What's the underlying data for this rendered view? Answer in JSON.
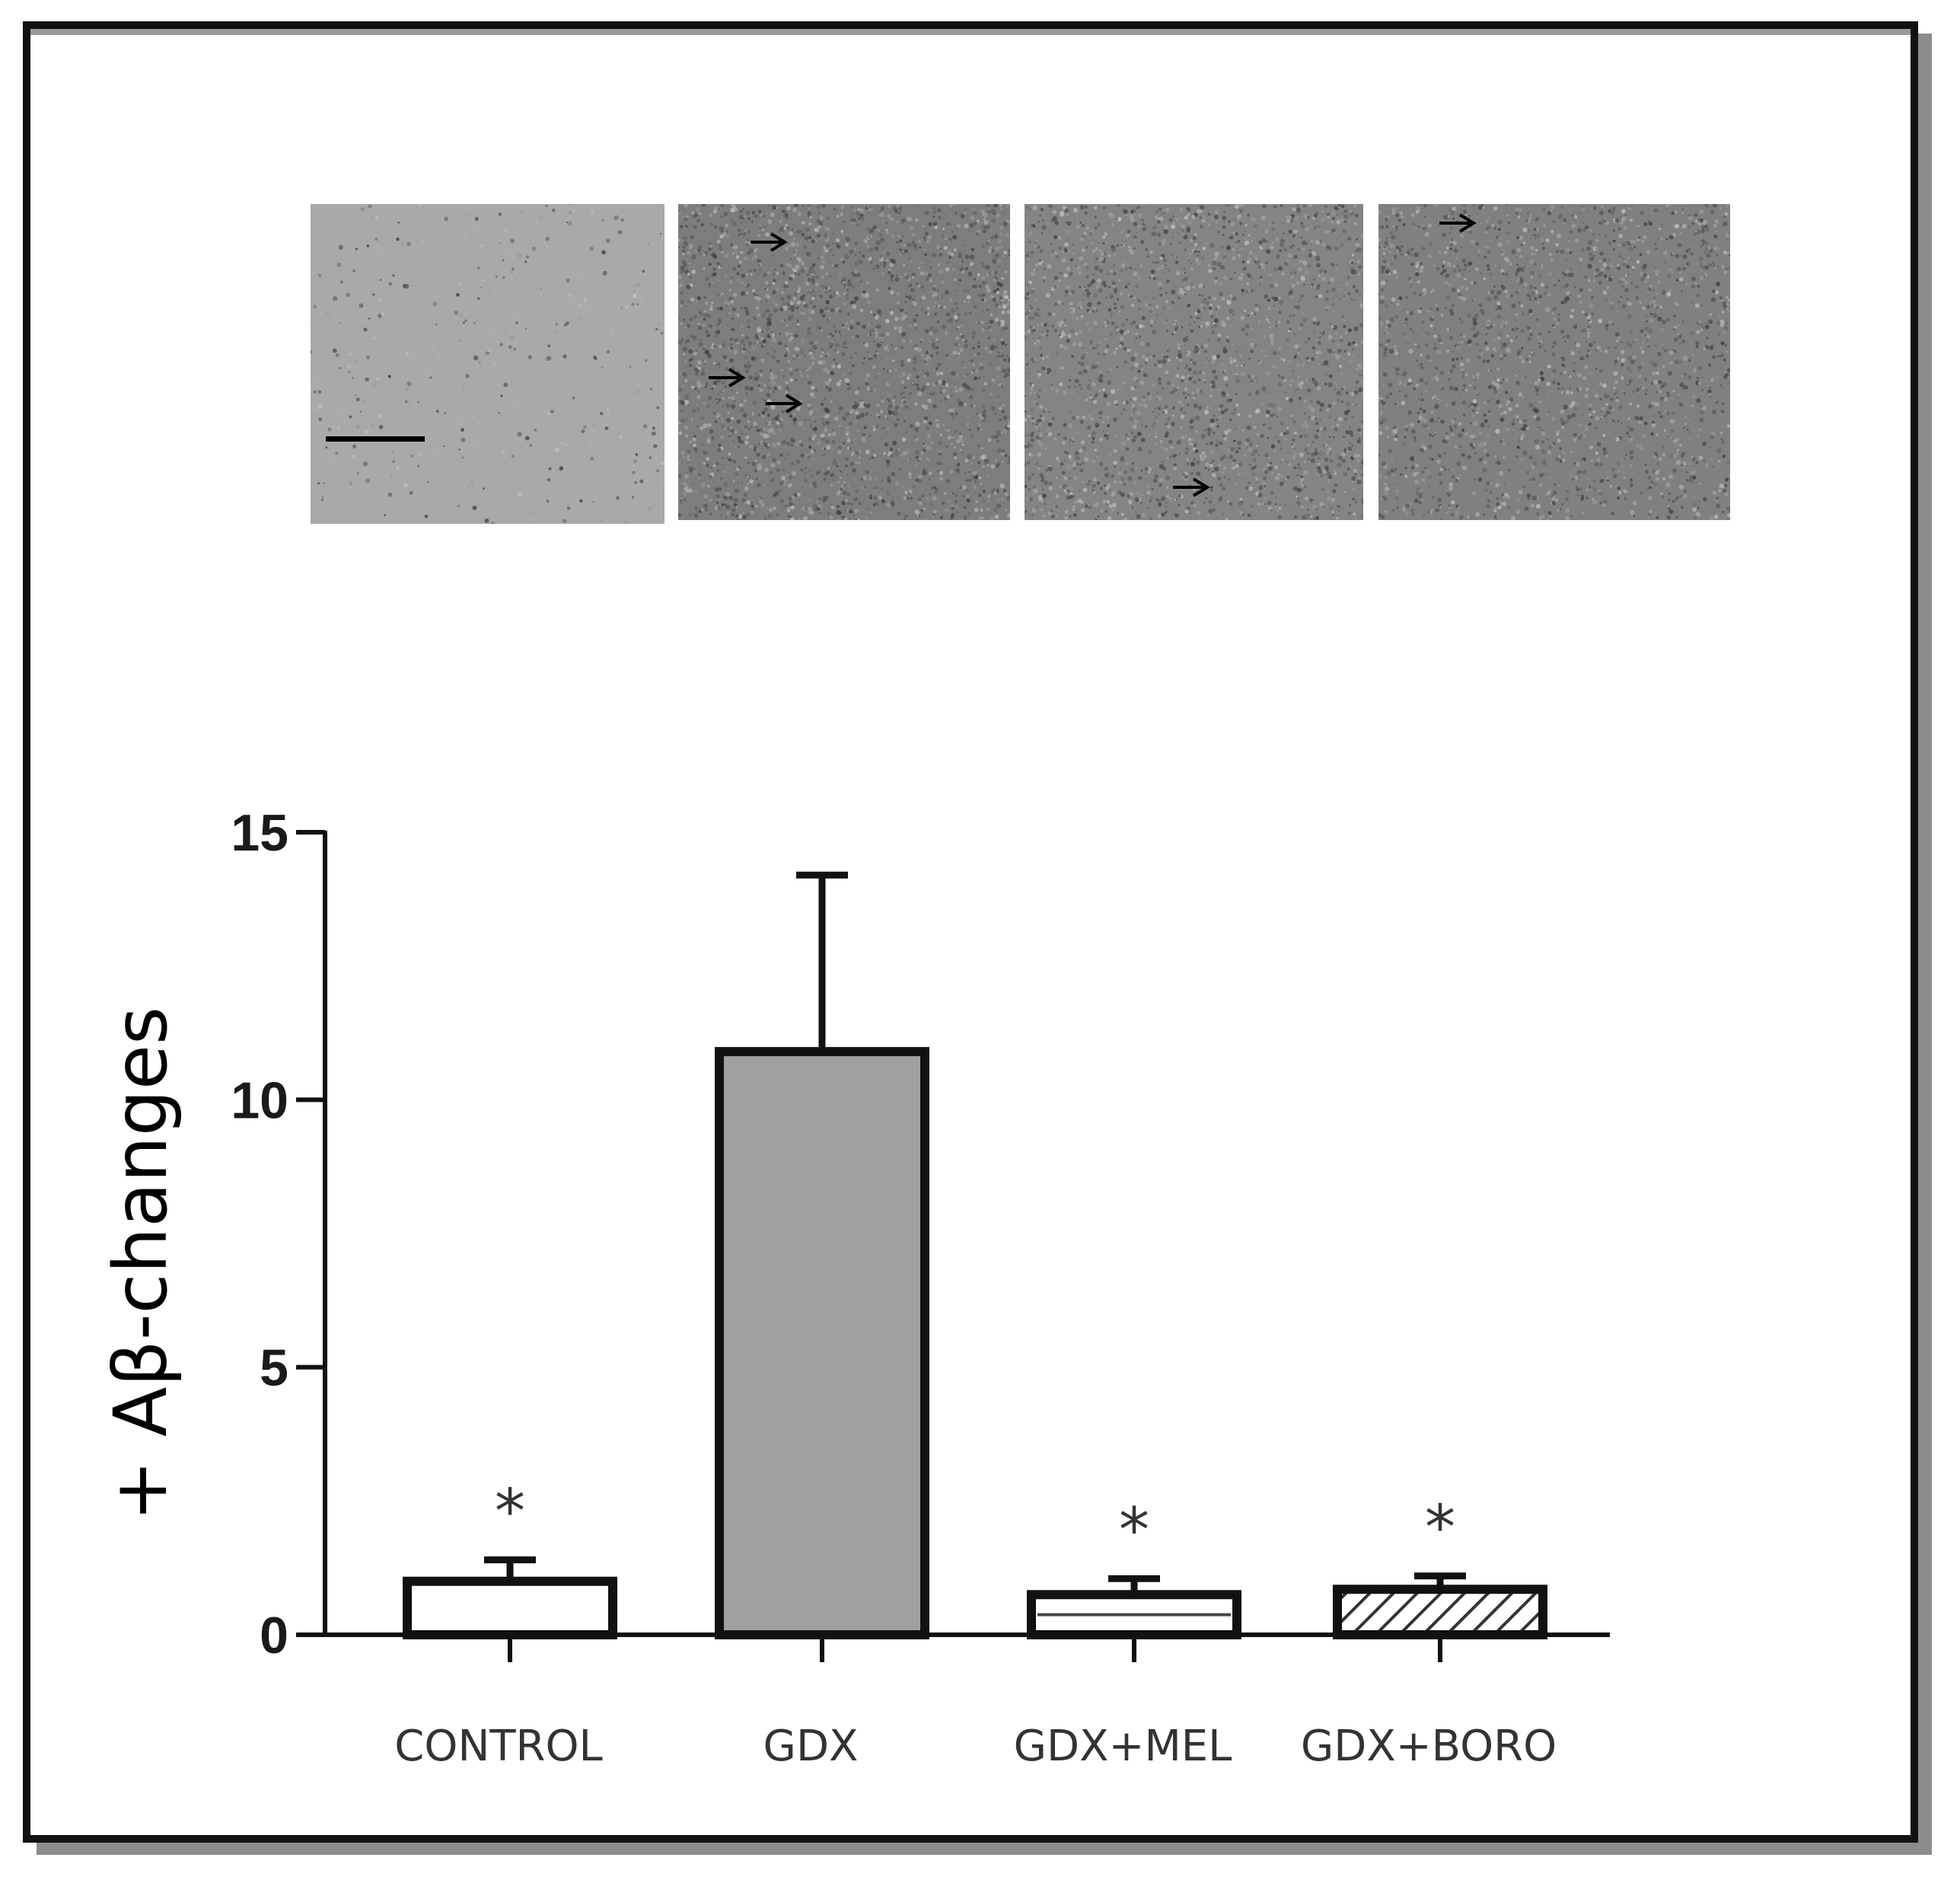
{
  "panels": [
    {
      "name": "control",
      "background": "#a9a9a9",
      "speckle": 0.15,
      "arrows": 0
    },
    {
      "name": "gdx",
      "background": "#7d7d7d",
      "speckle": 1.0,
      "arrows": 3
    },
    {
      "name": "gdx-mel",
      "background": "#848484",
      "speckle": 0.9,
      "arrows": 1
    },
    {
      "name": "gdx-boro",
      "background": "#808080",
      "speckle": 0.8,
      "arrows": 1
    }
  ],
  "chart_data": {
    "type": "bar",
    "categories": [
      "CONTROL",
      "GDX",
      "GDX+MEL",
      "GDX+BORO"
    ],
    "values": [
      1.0,
      10.9,
      0.75,
      0.85
    ],
    "errors": [
      0.4,
      3.3,
      0.3,
      0.25
    ],
    "significance": [
      "*",
      "",
      "*",
      "*"
    ],
    "fills": [
      "white",
      "gray",
      "white-striped",
      "hatched"
    ],
    "ylabel": "+ Aβ-changes",
    "ylim": [
      0,
      15
    ],
    "yticks": [
      0,
      5,
      10,
      15
    ],
    "grid": false
  }
}
